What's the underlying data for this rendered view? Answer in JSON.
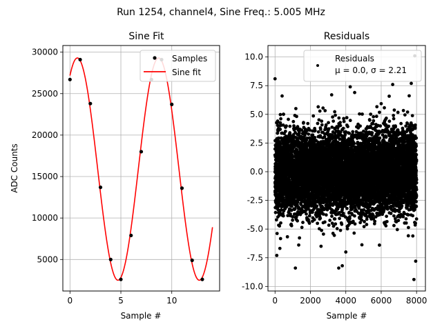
{
  "figure_title": "Run 1254, channel4, Sine Freq.: 5.005 MHz",
  "chart_data": [
    {
      "type": "scatter",
      "title": "Sine Fit",
      "xlabel": "Sample #",
      "ylabel": "ADC Counts",
      "xlim": [
        -0.7,
        14.7
      ],
      "ylim": [
        1200,
        30800
      ],
      "xticks": [
        0,
        5,
        10
      ],
      "yticks": [
        5000,
        10000,
        15000,
        20000,
        25000,
        30000
      ],
      "grid": true,
      "legend_position": "top-right",
      "colors": {
        "samples": "#000000",
        "fit": "#ff0000",
        "grid": "#b0b0b0"
      },
      "series": [
        {
          "name": "Samples",
          "kind": "scatter",
          "x": [
            0,
            1,
            2,
            3,
            4,
            5,
            6,
            7,
            8,
            9,
            10,
            11,
            12,
            13
          ],
          "y": [
            26700,
            29100,
            23800,
            13700,
            5000,
            2600,
            7900,
            18000,
            26700,
            29100,
            23700,
            13600,
            4900,
            2600
          ]
        },
        {
          "name": "Sine fit",
          "kind": "line",
          "model": {
            "offset": 15900,
            "amplitude": 13400,
            "period_samples": 7.985,
            "phase_rad": 1.0,
            "x_range": [
              0,
              14
            ]
          }
        }
      ]
    },
    {
      "type": "scatter",
      "title": "Residuals",
      "xlabel": "Sample #",
      "ylabel": "",
      "xlim": [
        -400,
        8500
      ],
      "ylim": [
        -10.4,
        11.0
      ],
      "xticks": [
        0,
        2000,
        4000,
        6000,
        8000
      ],
      "yticks": [
        -10.0,
        -7.5,
        -5.0,
        -2.5,
        0.0,
        2.5,
        5.0,
        7.5,
        10.0
      ],
      "grid": true,
      "legend_position": "top-right",
      "legend_lines": [
        "Residuals",
        "μ = 0.0, σ = 2.21"
      ],
      "colors": {
        "points": "#000000",
        "grid": "#b0b0b0"
      },
      "series": [
        {
          "name": "Residuals",
          "kind": "scatter",
          "n_points": 8000,
          "mean": 0.0,
          "sigma": 2.21,
          "outliers": [
            [
              0,
              8.1
            ],
            [
              100,
              -7.3
            ],
            [
              1150,
              -8.4
            ],
            [
              3600,
              -8.4
            ],
            [
              3800,
              -8.2
            ],
            [
              4250,
              7.4
            ],
            [
              6650,
              7.6
            ],
            [
              7850,
              -9.4
            ],
            [
              7900,
              10.1
            ],
            [
              7700,
              7.7
            ],
            [
              400,
              6.6
            ],
            [
              2600,
              -6.5
            ],
            [
              5900,
              -6.4
            ],
            [
              7950,
              -7.8
            ],
            [
              4000,
              -7.0
            ],
            [
              3200,
              6.7
            ],
            [
              4500,
              6.9
            ]
          ]
        }
      ]
    }
  ]
}
